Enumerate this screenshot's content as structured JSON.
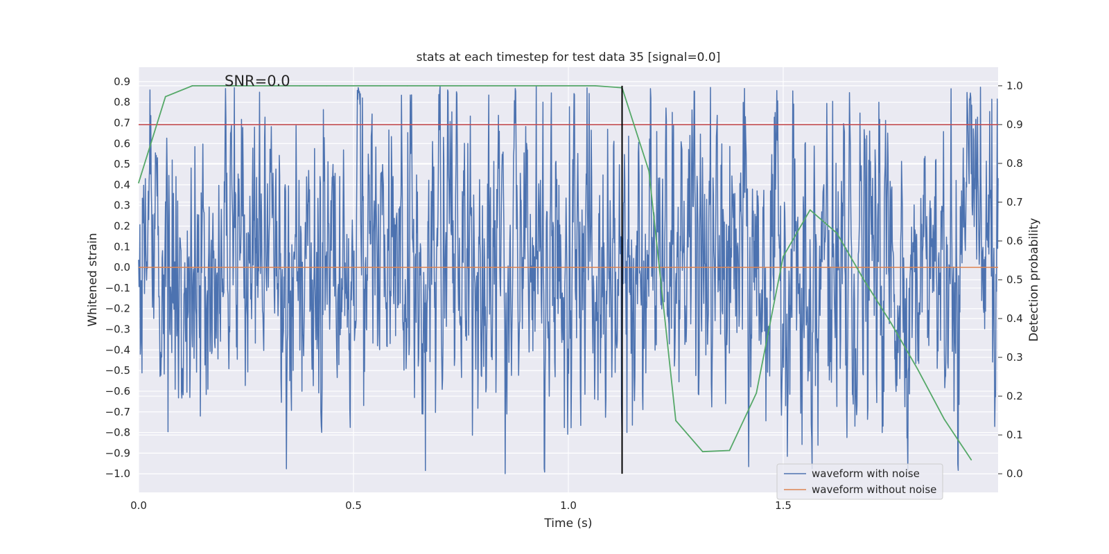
{
  "chart_data": {
    "type": "line",
    "title": "stats at each timestep for test data 35 [signal=0.0]",
    "xlabel": "Time (s)",
    "ylabel_left": "Whitened strain",
    "ylabel_right": "Detection probability",
    "xlim": [
      0.0,
      2.0
    ],
    "ylim_left": [
      -1.09,
      0.97
    ],
    "ylim_right": [
      -0.048,
      1.048
    ],
    "x_ticks": [
      0.0,
      0.5,
      1.0,
      1.5
    ],
    "x_tick_labels": [
      "0.0",
      "0.5",
      "1.0",
      "1.5"
    ],
    "y_left_ticks": [
      0.9,
      0.8,
      0.7,
      0.6,
      0.5,
      0.4,
      0.3,
      0.2,
      0.1,
      0.0,
      -0.1,
      -0.2,
      -0.3,
      -0.4,
      -0.5,
      -0.6,
      -0.7,
      -0.8,
      -0.9,
      -1.0
    ],
    "y_left_tick_labels": [
      "0.9",
      "0.8",
      "0.7",
      "0.6",
      "0.5",
      "0.4",
      "0.3",
      "0.2",
      "0.1",
      "0.0",
      "−0.1",
      "−0.2",
      "−0.3",
      "−0.4",
      "−0.5",
      "−0.6",
      "−0.7",
      "−0.8",
      "−0.9",
      "−1.0"
    ],
    "y_right_ticks": [
      1.0,
      0.9,
      0.8,
      0.7,
      0.6,
      0.5,
      0.4,
      0.3,
      0.2,
      0.1,
      0.0
    ],
    "y_right_tick_labels": [
      "1.0",
      "0.9",
      "0.8",
      "0.7",
      "0.6",
      "0.5",
      "0.4",
      "0.3",
      "0.2",
      "0.1",
      "0.0"
    ],
    "grid": true,
    "legend_position": "lower-right",
    "annotation": "SNR=0.0",
    "noise_waveform": {
      "name": "waveform with noise",
      "color": "#4c72b0",
      "x_range": [
        0.0,
        2.0
      ],
      "amplitude_range": [
        -1.0,
        0.88
      ],
      "samples": 2048
    },
    "clean_waveform": {
      "name": "waveform without noise",
      "color": "#dd8452",
      "value": 0.0
    },
    "detection_probability": {
      "color": "#55a868",
      "x": [
        0.0,
        0.0625,
        0.125,
        0.1875,
        0.25,
        0.3125,
        0.375,
        0.4375,
        0.5,
        0.5625,
        0.625,
        0.6875,
        0.75,
        0.8125,
        0.875,
        0.9375,
        1.0,
        1.0625,
        1.125,
        1.1875,
        1.25,
        1.3125,
        1.375,
        1.4375,
        1.5,
        1.5625,
        1.625,
        1.6875,
        1.75,
        1.8125,
        1.875,
        1.9375
      ],
      "y": [
        0.75,
        0.972,
        1.0,
        1.0,
        1.0,
        1.0,
        1.0,
        1.0,
        1.0,
        1.0,
        1.0,
        1.0,
        1.0,
        1.0,
        1.0,
        1.0,
        1.0,
        1.0,
        0.995,
        0.78,
        0.137,
        0.057,
        0.06,
        0.208,
        0.56,
        0.68,
        0.62,
        0.5,
        0.39,
        0.27,
        0.14,
        0.036
      ]
    },
    "threshold_line": {
      "color": "#c44e52",
      "value": 0.9
    },
    "event_marker": {
      "color": "#000000",
      "x": 1.125,
      "y_range": [
        -1.0,
        0.88
      ]
    }
  }
}
